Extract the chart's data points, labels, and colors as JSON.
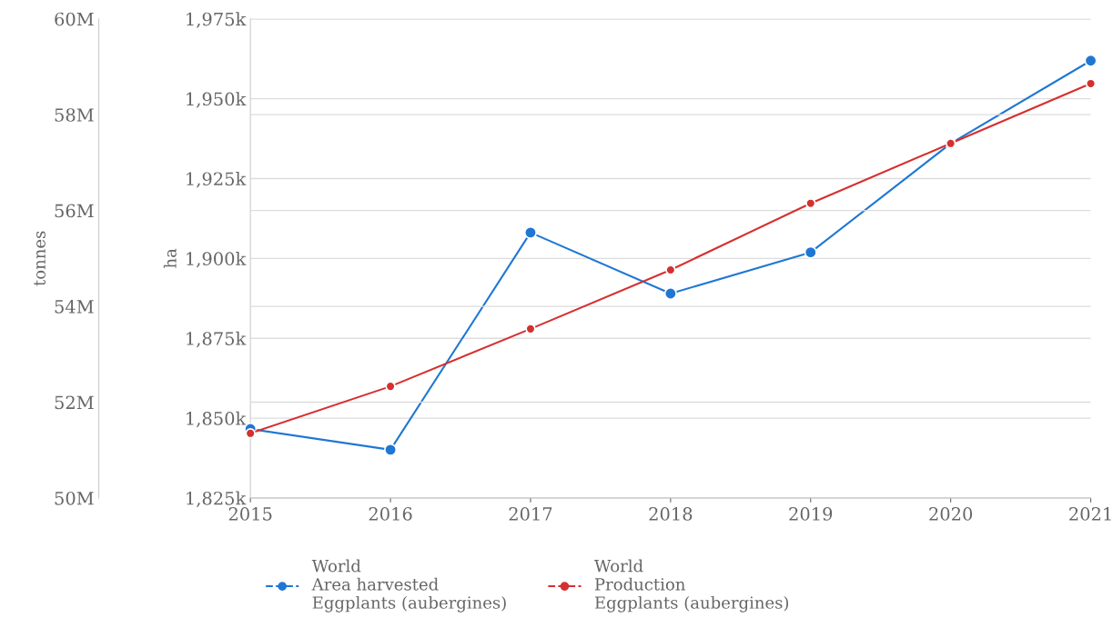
{
  "chart_data": {
    "type": "line",
    "ylabel": "tonnes",
    "y2label": "ha",
    "x": [
      2015,
      2016,
      2017,
      2018,
      2019,
      2020,
      2021
    ],
    "xlim": [
      2015,
      2021
    ],
    "xticks": [
      2015,
      2016,
      2017,
      2018,
      2019,
      2020,
      2021
    ],
    "ylim": [
      50000000,
      60000000
    ],
    "yticks": [
      {
        "value": 50000000,
        "label": "50M"
      },
      {
        "value": 52000000,
        "label": "52M"
      },
      {
        "value": 54000000,
        "label": "54M"
      },
      {
        "value": 56000000,
        "label": "56M"
      },
      {
        "value": 58000000,
        "label": "58M"
      },
      {
        "value": 60000000,
        "label": "60M"
      }
    ],
    "y2lim": [
      1825000,
      1975000
    ],
    "y2ticks": [
      {
        "value": 1825000,
        "label": "1,825k"
      },
      {
        "value": 1850000,
        "label": "1,850k"
      },
      {
        "value": 1875000,
        "label": "1,875k"
      },
      {
        "value": 1900000,
        "label": "1,900k"
      },
      {
        "value": 1925000,
        "label": "1,925k"
      },
      {
        "value": 1950000,
        "label": "1,950k"
      },
      {
        "value": 1975000,
        "label": "1,975k"
      }
    ],
    "series": [
      {
        "name": "World\nArea harvested\nEggplants (aubergines)",
        "color": "#1f77d4",
        "axis": "y2",
        "values": [
          1846600,
          1840100,
          1908100,
          1889000,
          1901900,
          1936000,
          1961900
        ]
      },
      {
        "name": "World\nProduction\nEggplants (aubergines)",
        "color": "#d62f2f",
        "axis": "y",
        "values": [
          51350000,
          52330000,
          53530000,
          54760000,
          56150000,
          57400000,
          58650000
        ]
      }
    ],
    "grid": "y",
    "legend": "bottom",
    "marker": "circle",
    "line_style": "solid"
  }
}
